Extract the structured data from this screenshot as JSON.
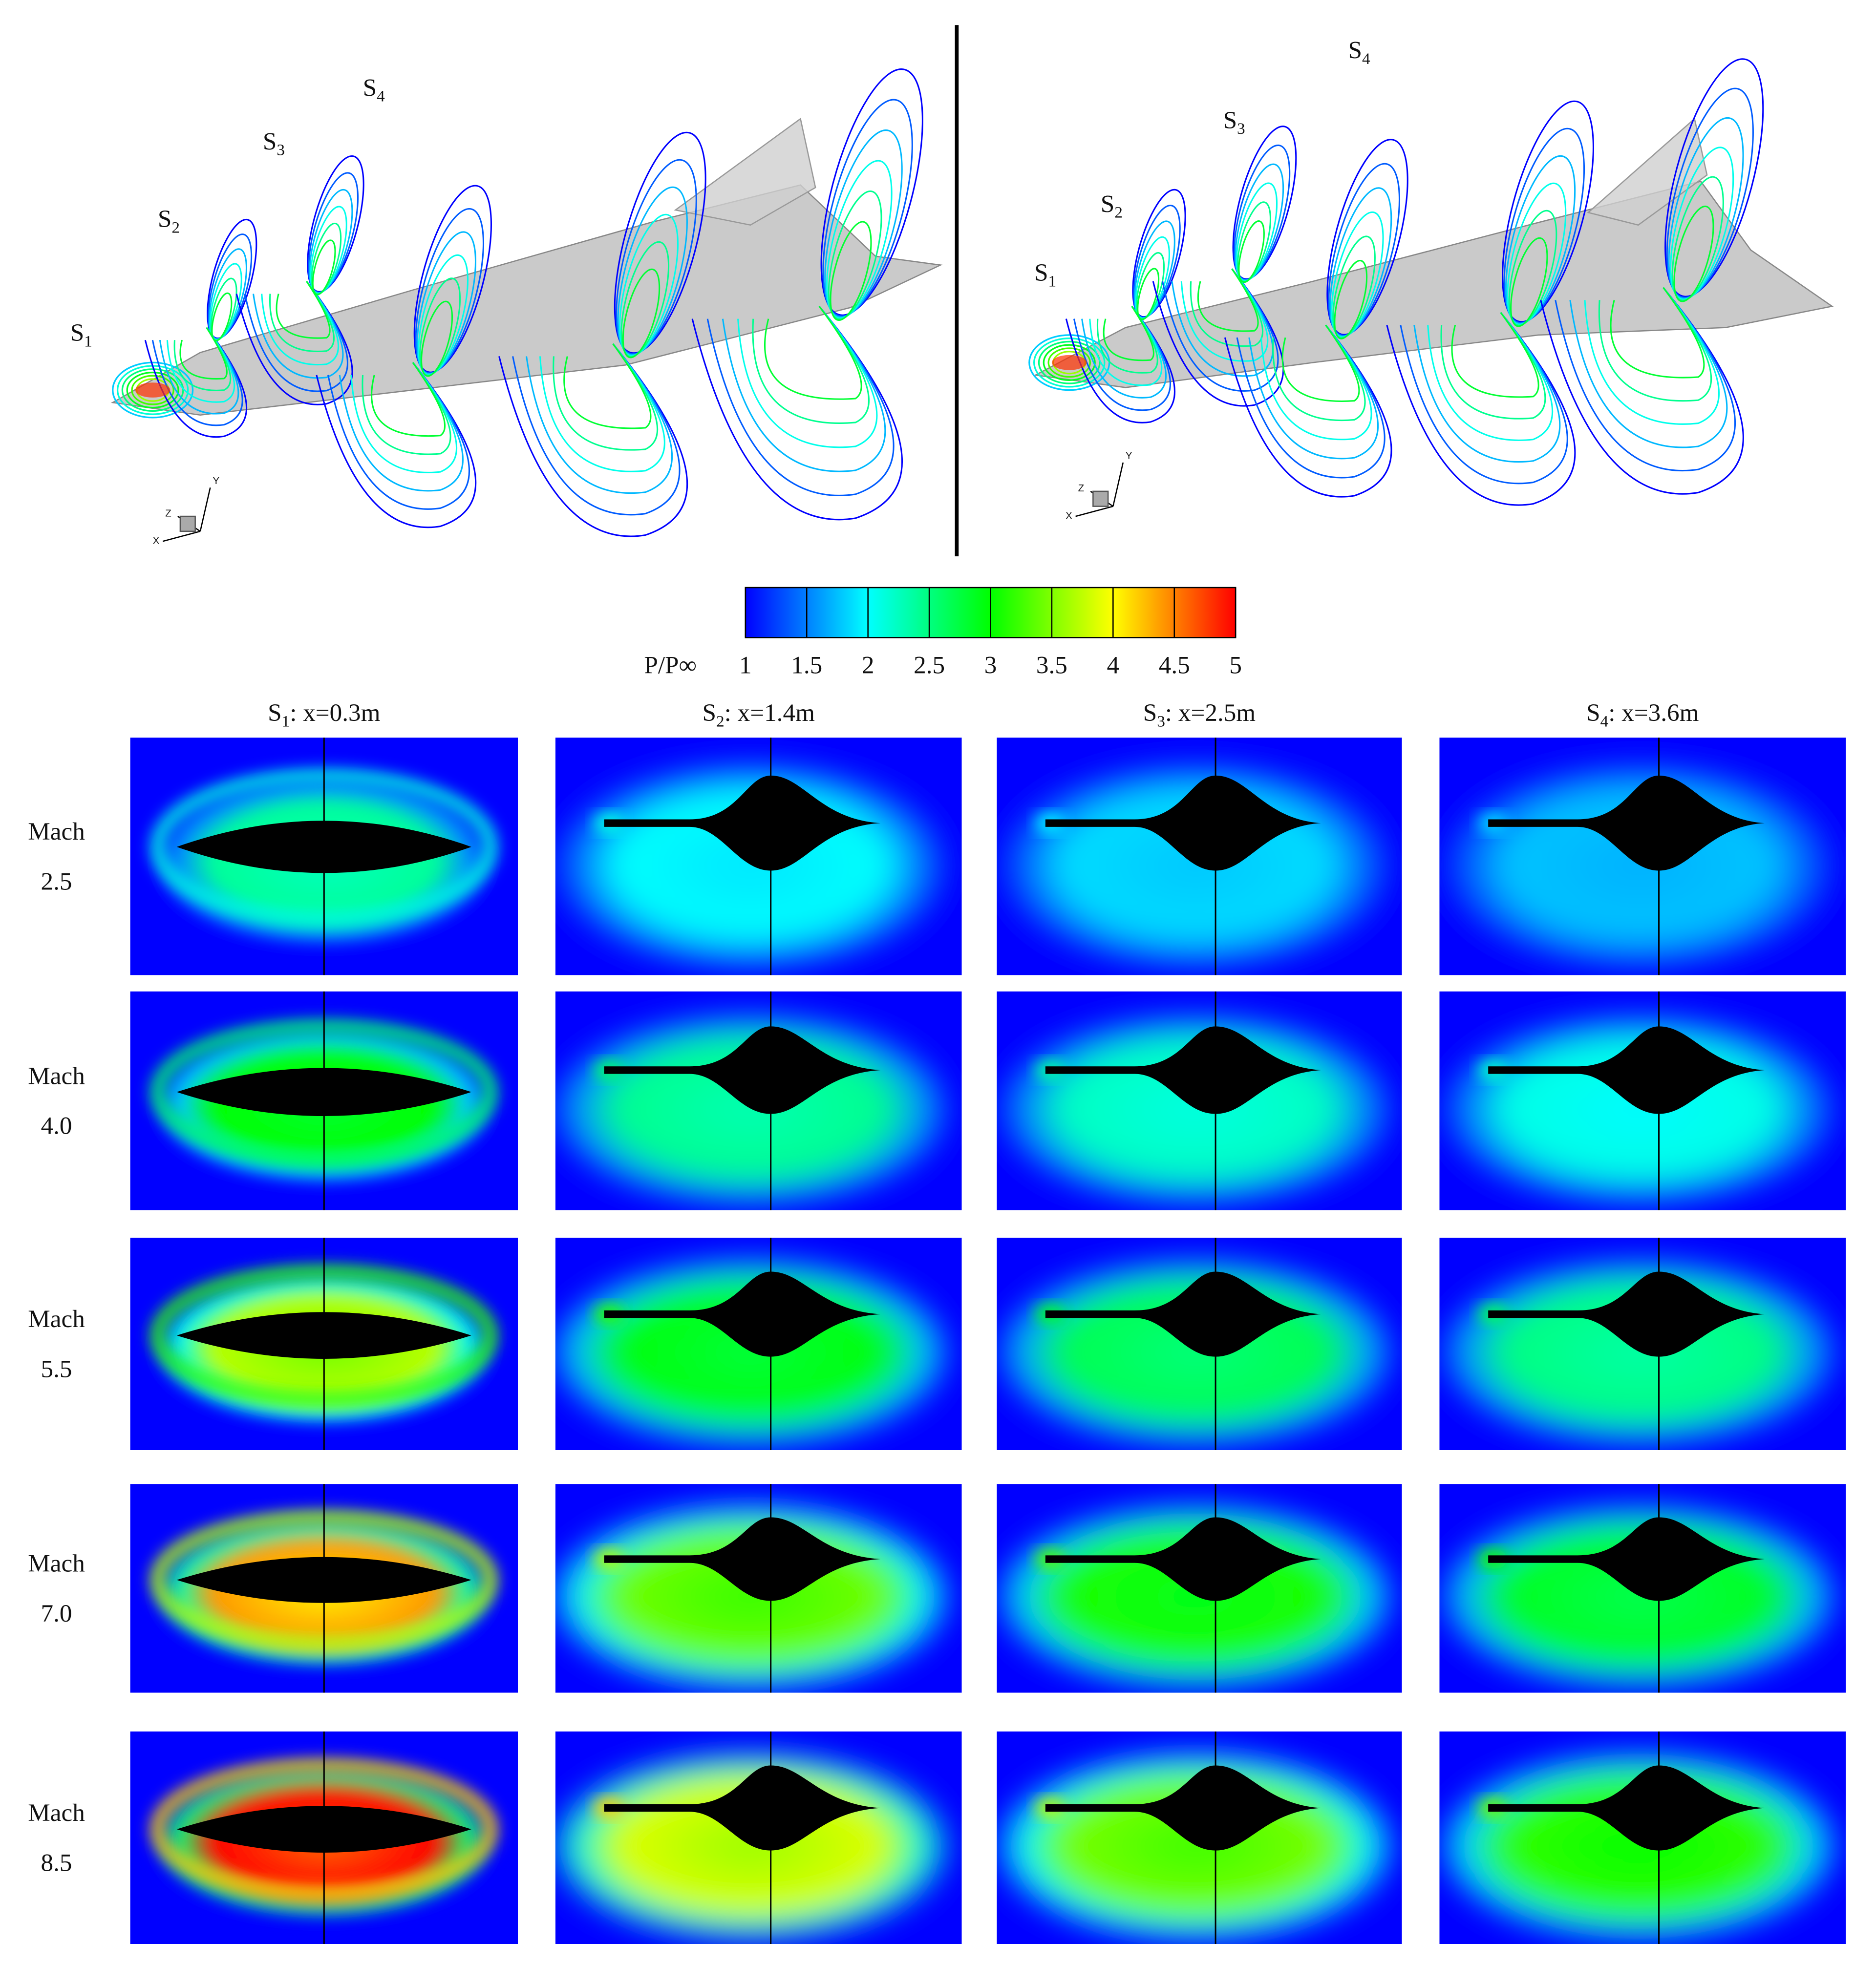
{
  "top_views": [
    {
      "section_labels": [
        {
          "base": "S",
          "sub": "1"
        },
        {
          "base": "S",
          "sub": "2"
        },
        {
          "base": "S",
          "sub": "3"
        },
        {
          "base": "S",
          "sub": "4"
        }
      ],
      "axis_triad": {
        "y": "Y",
        "z": "Z",
        "x": "X"
      }
    },
    {
      "section_labels": [
        {
          "base": "S",
          "sub": "1"
        },
        {
          "base": "S",
          "sub": "2"
        },
        {
          "base": "S",
          "sub": "3"
        },
        {
          "base": "S",
          "sub": "4"
        }
      ],
      "axis_triad": {
        "y": "Y",
        "z": "Z",
        "x": "X"
      }
    }
  ],
  "colorbar": {
    "label": "P/P∞",
    "range": [
      1,
      5
    ],
    "ticks": [
      1,
      1.5,
      2,
      2.5,
      3,
      3.5,
      4,
      4.5,
      5
    ],
    "colors": [
      "#0000ff",
      "#00ffff",
      "#00ff00",
      "#ffff00",
      "#ff0000"
    ]
  },
  "columns": [
    {
      "base": "S",
      "sub": "1",
      "rest": ": x=0.3m"
    },
    {
      "base": "S",
      "sub": "2",
      "rest": ": x=1.4m"
    },
    {
      "base": "S",
      "sub": "3",
      "rest": ": x=2.5m"
    },
    {
      "base": "S",
      "sub": "4",
      "rest": ": x=3.6m"
    }
  ],
  "rows": [
    {
      "label": "Mach",
      "value": "2.5"
    },
    {
      "label": "Mach",
      "value": "4.0"
    },
    {
      "label": "Mach",
      "value": "5.5"
    },
    {
      "label": "Mach",
      "value": "7.0"
    },
    {
      "label": "Mach",
      "value": "8.5"
    }
  ]
}
